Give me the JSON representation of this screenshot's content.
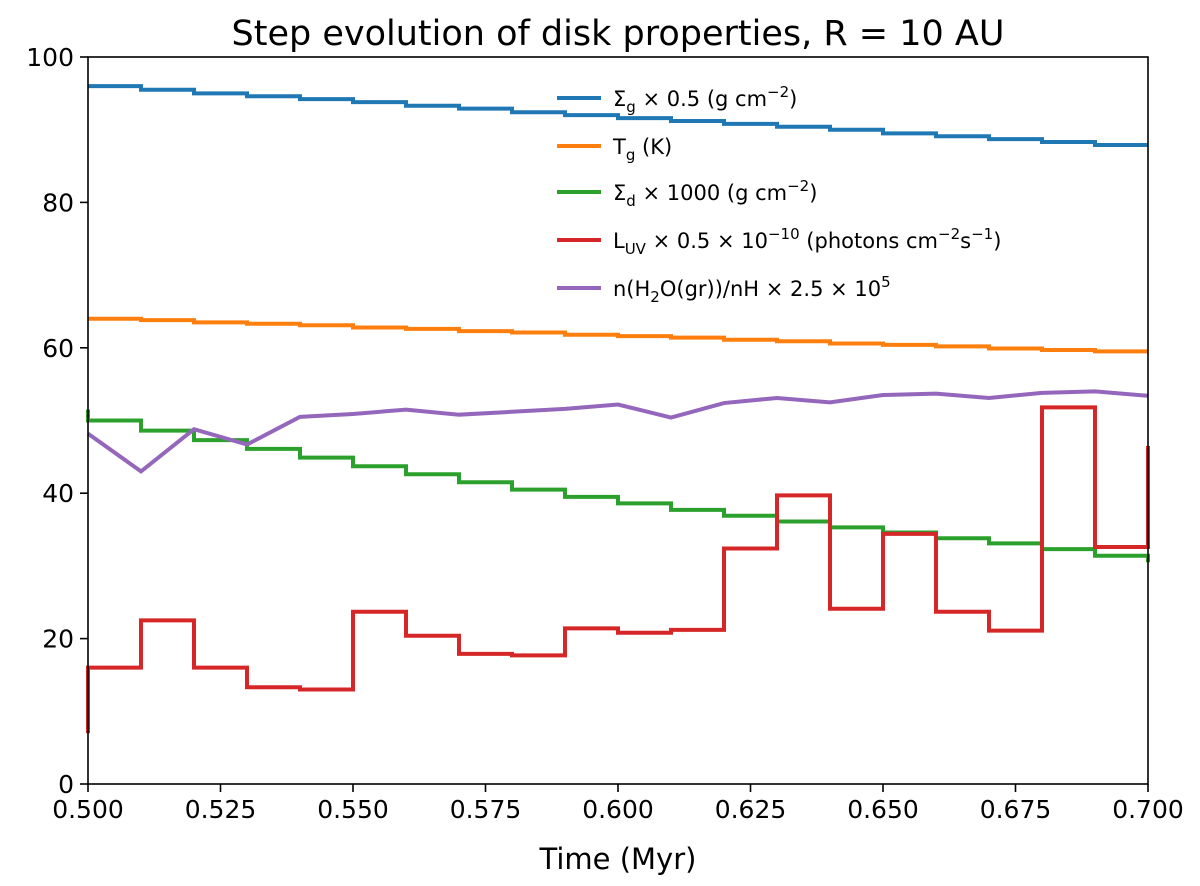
{
  "chart_data": {
    "type": "line",
    "step": true,
    "title": "Step evolution of disk properties, R = 10 AU",
    "xlabel": "Time (Myr)",
    "ylabel": "",
    "xlim": [
      0.5,
      0.7
    ],
    "ylim": [
      0,
      100
    ],
    "xticks": [
      0.5,
      0.525,
      0.55,
      0.575,
      0.6,
      0.625,
      0.65,
      0.675,
      0.7
    ],
    "xtick_labels": [
      "0.500",
      "0.525",
      "0.550",
      "0.575",
      "0.600",
      "0.625",
      "0.650",
      "0.675",
      "0.700"
    ],
    "yticks": [
      0,
      20,
      40,
      60,
      80,
      100
    ],
    "ytick_labels": [
      "0",
      "20",
      "40",
      "60",
      "80",
      "100"
    ],
    "grid": false,
    "legend_position": "top-right",
    "series": [
      {
        "name": "Σg × 0.5 (g cm−2)",
        "label_main": "Σ",
        "label_sub": "g",
        "label_rest": " × 0.5 (g cm",
        "label_sup": "−2",
        "label_end": ")",
        "color": "#1f77b4",
        "mode": "step",
        "x": [
          0.5,
          0.51,
          0.52,
          0.53,
          0.54,
          0.55,
          0.56,
          0.57,
          0.58,
          0.59,
          0.6,
          0.61,
          0.62,
          0.63,
          0.64,
          0.65,
          0.66,
          0.67,
          0.68,
          0.69,
          0.7
        ],
        "values": [
          96.0,
          95.5,
          95.0,
          94.6,
          94.2,
          93.8,
          93.3,
          92.9,
          92.4,
          92.0,
          91.6,
          91.2,
          90.8,
          90.4,
          90.0,
          89.5,
          89.1,
          88.7,
          88.3,
          87.9,
          87.9
        ]
      },
      {
        "name": "Tg (K)",
        "label_main": "T",
        "label_sub": "g",
        "label_rest": " (K)",
        "label_sup": "",
        "label_end": "",
        "color": "#ff7f0e",
        "mode": "step",
        "x": [
          0.5,
          0.51,
          0.52,
          0.53,
          0.54,
          0.55,
          0.56,
          0.57,
          0.58,
          0.59,
          0.6,
          0.61,
          0.62,
          0.63,
          0.64,
          0.65,
          0.66,
          0.67,
          0.68,
          0.69,
          0.7
        ],
        "values": [
          64.0,
          63.8,
          63.5,
          63.3,
          63.1,
          62.8,
          62.6,
          62.3,
          62.1,
          61.8,
          61.6,
          61.4,
          61.1,
          60.9,
          60.6,
          60.4,
          60.2,
          59.9,
          59.7,
          59.5,
          59.5
        ]
      },
      {
        "name": "Σd × 1000 (g cm−2)",
        "label_main": "Σ",
        "label_sub": "d",
        "label_rest": " × 1000 (g cm",
        "label_sup": "−2",
        "label_end": ")",
        "color": "#2ca02c",
        "mode": "step",
        "x": [
          0.5,
          0.51,
          0.52,
          0.53,
          0.54,
          0.55,
          0.56,
          0.57,
          0.58,
          0.59,
          0.6,
          0.61,
          0.62,
          0.63,
          0.64,
          0.65,
          0.66,
          0.67,
          0.68,
          0.69,
          0.7
        ],
        "values": [
          50.0,
          48.6,
          47.3,
          46.1,
          44.9,
          43.7,
          42.6,
          41.5,
          40.5,
          39.5,
          38.6,
          37.7,
          36.9,
          36.1,
          35.3,
          34.6,
          33.8,
          33.1,
          32.3,
          31.4,
          31.4
        ],
        "start_y": 51.5,
        "end_y": 30.5
      },
      {
        "name": "LUV × 0.5 × 10−10 (photons cm−2s−1)",
        "label_main": "L",
        "label_sub": "UV",
        "label_rest": " × 0.5 × 10",
        "label_sup": "−10",
        "label_end": " (photons cm",
        "label_sup2": "−2",
        "label_mid2": "s",
        "label_sup3": "−1",
        "label_end2": ")",
        "color": "#d62728",
        "mode": "step",
        "x": [
          0.5,
          0.51,
          0.52,
          0.53,
          0.54,
          0.55,
          0.56,
          0.57,
          0.58,
          0.59,
          0.6,
          0.61,
          0.62,
          0.63,
          0.64,
          0.65,
          0.66,
          0.67,
          0.68,
          0.69,
          0.7
        ],
        "values": [
          16.0,
          22.5,
          16.0,
          13.3,
          13.0,
          23.7,
          20.4,
          17.9,
          17.7,
          21.4,
          20.8,
          21.2,
          32.4,
          39.7,
          24.1,
          34.4,
          23.7,
          21.1,
          51.8,
          32.6,
          32.6
        ],
        "start_y": 7.0,
        "end_y": 46.5
      },
      {
        "name": "n(H2O(gr))/nH × 2.5 × 105",
        "label_main": "n(H",
        "label_sub": "2",
        "label_rest": "O(gr))/nH × 2.5 × 10",
        "label_sup": "5",
        "label_end": "",
        "color": "#9467bd",
        "mode": "line",
        "x": [
          0.5,
          0.51,
          0.52,
          0.53,
          0.54,
          0.55,
          0.56,
          0.57,
          0.58,
          0.59,
          0.6,
          0.61,
          0.62,
          0.63,
          0.64,
          0.65,
          0.66,
          0.67,
          0.68,
          0.69,
          0.7
        ],
        "values": [
          48.2,
          43.0,
          48.8,
          46.7,
          50.5,
          50.9,
          51.5,
          50.8,
          51.2,
          51.6,
          52.2,
          50.4,
          52.4,
          53.1,
          52.5,
          53.5,
          53.7,
          53.1,
          53.8,
          54.0,
          53.4
        ]
      }
    ]
  }
}
